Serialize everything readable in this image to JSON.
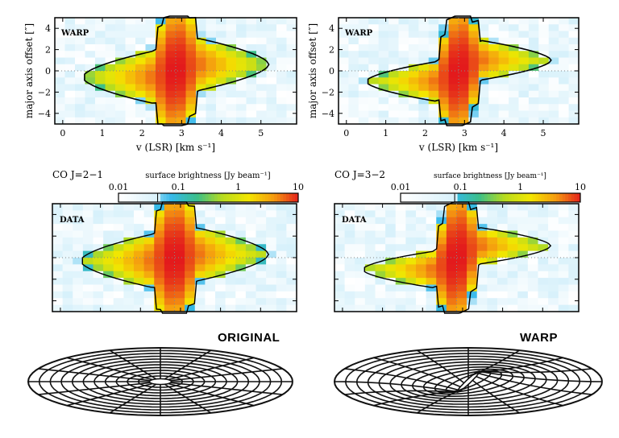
{
  "chart_data": [
    {
      "type": "heatmap",
      "panel_label": "WARP",
      "xlabel": "v (LSR) [km s⁻¹]",
      "ylabel": "major axis offset [″]",
      "xlim": [
        -0.2,
        5.9
      ],
      "ylim": [
        -5,
        5
      ],
      "xticks": [
        "0",
        "1",
        "2",
        "3",
        "4",
        "5"
      ],
      "yticks": [
        "4",
        "2",
        "0",
        "−2",
        "−4"
      ],
      "systemic_velocity": 2.85,
      "model": "warp"
    },
    {
      "type": "heatmap",
      "panel_label": "WARP",
      "xlabel": "v (LSR) [km s⁻¹]",
      "ylabel": "major axis offset [″]",
      "xlim": [
        -0.2,
        5.9
      ],
      "ylim": [
        -5,
        5
      ],
      "xticks": [
        "0",
        "1",
        "2",
        "3",
        "4",
        "5"
      ],
      "yticks": [
        "4",
        "2",
        "0",
        "−2",
        "−4"
      ],
      "systemic_velocity": 2.85,
      "model": "warp-strong"
    },
    {
      "type": "heatmap",
      "title": "CO J=2−1",
      "panel_label": "DATA",
      "colorbar": {
        "label": "surface brightness [Jy beam⁻¹]",
        "ticks": [
          "0.01",
          "0.1",
          "1",
          "10"
        ],
        "range": [
          0.01,
          10
        ],
        "scale": "log",
        "contour_level": 0.045
      },
      "model": "data21"
    },
    {
      "type": "heatmap",
      "title": "CO J=3−2",
      "panel_label": "DATA",
      "colorbar": {
        "label": "surface brightness [Jy beam⁻¹]",
        "ticks": [
          "0.01",
          "0.1",
          "1",
          "10"
        ],
        "range": [
          0.01,
          10
        ],
        "scale": "log",
        "contour_level": 0.08
      },
      "model": "data32"
    }
  ],
  "disks": [
    {
      "label": "ORIGINAL",
      "warped": false
    },
    {
      "label": "WARP",
      "warped": true
    }
  ],
  "colormap": [
    "#ffffff",
    "#cfeefa",
    "#35b8ea",
    "#3bbf8a",
    "#b8dc1e",
    "#f3e600",
    "#f59a10",
    "#e31a1c"
  ]
}
